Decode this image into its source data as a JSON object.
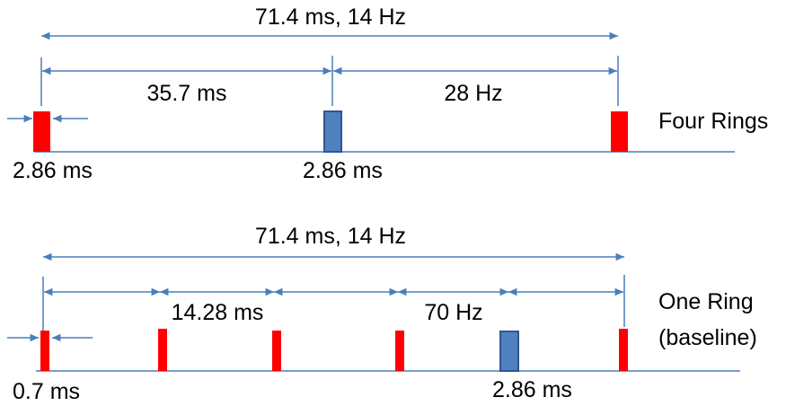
{
  "colors": {
    "line": "#4a7ebb",
    "red_pulse": "#ff0000",
    "blue_pulse": "#4f81bd",
    "blue_pulse_stroke": "#2f5597",
    "text": "#000000"
  },
  "four_rings": {
    "label": "Four Rings",
    "total_label": "71.4 ms, 14 Hz",
    "half_label": "35.7 ms",
    "freq_label": "28 Hz",
    "pulse_width_left": "2.86 ms",
    "pulse_width_mid": "2.86 ms"
  },
  "one_ring": {
    "label_line1": "One Ring",
    "label_line2": "(baseline)",
    "total_label": "71.4 ms, 14 Hz",
    "interval_label": "14.28 ms",
    "freq_label": "70 Hz",
    "pulse_width_left": "0.7 ms",
    "pulse_width_blue": "2.86 ms"
  }
}
